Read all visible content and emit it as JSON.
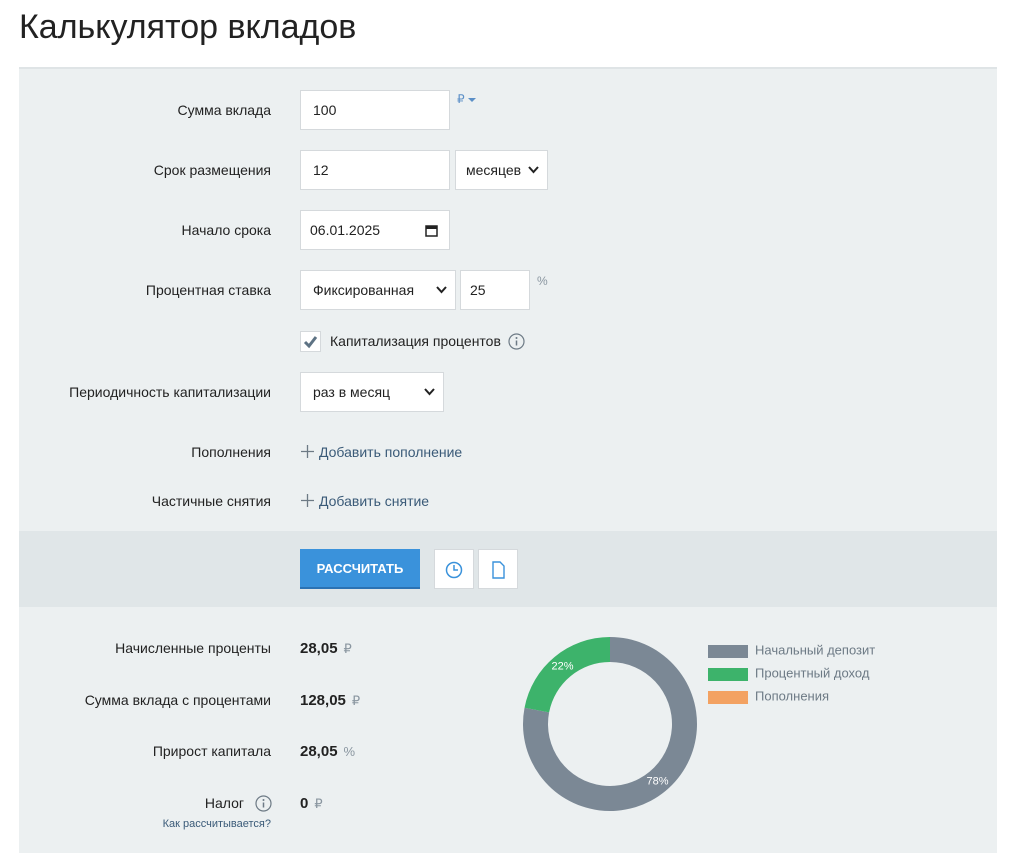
{
  "header": {
    "title": "Калькулятор вкладов"
  },
  "form": {
    "amount": {
      "label": "Сумма вклада",
      "value": "100",
      "currency": "₽"
    },
    "term": {
      "label": "Срок размещения",
      "value": "12",
      "unit": "месяцев"
    },
    "start": {
      "label": "Начало срока",
      "value": "06.01.2025"
    },
    "rate": {
      "label": "Процентная ставка",
      "kind": "Фиксированная",
      "value": "25",
      "unit": "%"
    },
    "capitalization": {
      "label": "Капитализация процентов",
      "checked": true
    },
    "period": {
      "label": "Периодичность капитализации",
      "value": "раз в месяц"
    },
    "deposits": {
      "label": "Пополнения",
      "action": "Добавить пополнение"
    },
    "withdrawals": {
      "label": "Частичные снятия",
      "action": "Добавить снятие"
    }
  },
  "actions": {
    "calculate": "РАССЧИТАТЬ"
  },
  "results": {
    "rows": [
      {
        "label": "Начисленные проценты",
        "value": "28,05",
        "unit": "₽"
      },
      {
        "label": "Сумма вклада с процентами",
        "value": "128,05",
        "unit": "₽"
      },
      {
        "label": "Прирост капитала",
        "value": "28,05",
        "unit": "%"
      },
      {
        "label": "Налог",
        "value": "0",
        "unit": "₽"
      }
    ],
    "tax_help": "Как рассчитывается?"
  },
  "chart_data": {
    "type": "pie",
    "donut": true,
    "categories": [
      "Начальный депозит",
      "Процентный доход",
      "Пополнения"
    ],
    "values": [
      78,
      22,
      0
    ],
    "value_labels": [
      "78%",
      "22%",
      null
    ],
    "colors": [
      "#7b8895",
      "#3db36b",
      "#f3a262"
    ]
  }
}
